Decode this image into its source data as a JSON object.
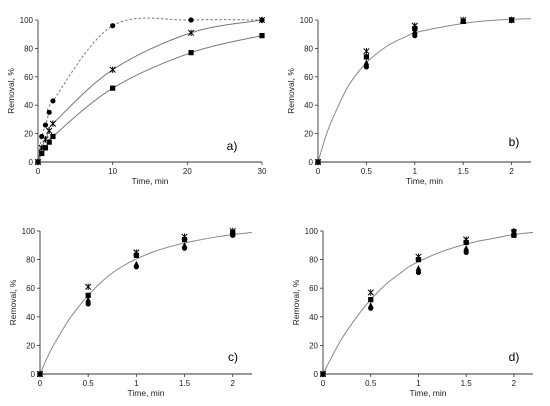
{
  "chart_data": [
    {
      "type": "scatter",
      "panel_label": "a)",
      "xlabel": "Time, min",
      "ylabel": "Removal, %",
      "xlim": [
        0,
        30
      ],
      "ylim": [
        0,
        100
      ],
      "xticks": [
        0,
        10,
        20,
        30
      ],
      "yticks": [
        0,
        20,
        40,
        60,
        80,
        100
      ],
      "series": [
        {
          "marker": "circle",
          "fit": "dashed",
          "points": [
            [
              0,
              0
            ],
            [
              0.5,
              18
            ],
            [
              1,
              26
            ],
            [
              1.5,
              35
            ],
            [
              2,
              43
            ],
            [
              10,
              96
            ],
            [
              20.5,
              100
            ],
            [
              30,
              100
            ]
          ]
        },
        {
          "marker": "cross",
          "fit": "solid",
          "points": [
            [
              0,
              0
            ],
            [
              0.5,
              10
            ],
            [
              1,
              16
            ],
            [
              1.5,
              22
            ],
            [
              2,
              27
            ],
            [
              10,
              65
            ],
            [
              20.5,
              91
            ],
            [
              30,
              100
            ]
          ]
        },
        {
          "marker": "square",
          "fit": "solid",
          "points": [
            [
              0,
              0
            ],
            [
              0.5,
              6
            ],
            [
              1,
              10
            ],
            [
              1.5,
              14
            ],
            [
              2,
              18
            ],
            [
              10,
              52
            ],
            [
              20.5,
              77
            ],
            [
              30,
              89
            ]
          ]
        }
      ]
    },
    {
      "type": "scatter",
      "panel_label": "b)",
      "xlabel": "Time, min",
      "ylabel": "Removal, %",
      "xlim": [
        0,
        2.2
      ],
      "ylim": [
        0,
        100
      ],
      "xticks": [
        0,
        0.5,
        1,
        1.5,
        2
      ],
      "yticks": [
        0,
        20,
        40,
        60,
        80,
        100
      ],
      "series": [
        {
          "marker": "cross",
          "points": [
            [
              0,
              0
            ],
            [
              0.5,
              78
            ],
            [
              1,
              96
            ],
            [
              1.5,
              100
            ],
            [
              2,
              100
            ]
          ]
        },
        {
          "marker": "square",
          "points": [
            [
              0,
              0
            ],
            [
              0.5,
              74
            ],
            [
              1,
              94
            ],
            [
              1.5,
              99
            ],
            [
              2,
              100
            ]
          ]
        },
        {
          "marker": "triangle",
          "points": [
            [
              0,
              0
            ],
            [
              0.5,
              70
            ],
            [
              1,
              92
            ],
            [
              1.5,
              99
            ],
            [
              2,
              100
            ]
          ]
        },
        {
          "marker": "circle",
          "points": [
            [
              0,
              0
            ],
            [
              0.5,
              67
            ],
            [
              1,
              89
            ],
            [
              1.5,
              99
            ],
            [
              2,
              100
            ]
          ]
        }
      ],
      "fit": [
        [
          0,
          0
        ],
        [
          0.1,
          22
        ],
        [
          0.2,
          38
        ],
        [
          0.3,
          52
        ],
        [
          0.4,
          62
        ],
        [
          0.5,
          70
        ],
        [
          0.6,
          76
        ],
        [
          0.7,
          81
        ],
        [
          0.8,
          85
        ],
        [
          0.9,
          88
        ],
        [
          1,
          91
        ],
        [
          1.2,
          94
        ],
        [
          1.4,
          96.5
        ],
        [
          1.6,
          98.5
        ],
        [
          1.8,
          99.7
        ],
        [
          2,
          100.5
        ],
        [
          2.2,
          101
        ]
      ]
    },
    {
      "type": "scatter",
      "panel_label": "c)",
      "xlabel": "Time, min",
      "ylabel": "Removal, %",
      "xlim": [
        0,
        2.2
      ],
      "ylim": [
        0,
        100
      ],
      "xticks": [
        0,
        0.5,
        1,
        1.5,
        2
      ],
      "yticks": [
        0,
        20,
        40,
        60,
        80,
        100
      ],
      "series": [
        {
          "marker": "cross",
          "points": [
            [
              0,
              0
            ],
            [
              0.5,
              61
            ],
            [
              1,
              85
            ],
            [
              1.5,
              96
            ],
            [
              2,
              100
            ]
          ]
        },
        {
          "marker": "square",
          "points": [
            [
              0,
              0
            ],
            [
              0.5,
              55
            ],
            [
              1,
              83
            ],
            [
              1.5,
              94
            ],
            [
              2,
              99
            ]
          ]
        },
        {
          "marker": "triangle",
          "points": [
            [
              0,
              0
            ],
            [
              0.5,
              52
            ],
            [
              1,
              77
            ],
            [
              1.5,
              90
            ],
            [
              2,
              98
            ]
          ]
        },
        {
          "marker": "circle",
          "points": [
            [
              0,
              0
            ],
            [
              0.5,
              49
            ],
            [
              1,
              75
            ],
            [
              1.5,
              88
            ],
            [
              2,
              97
            ]
          ]
        }
      ],
      "fit": [
        [
          0,
          0
        ],
        [
          0.1,
          15
        ],
        [
          0.2,
          27
        ],
        [
          0.3,
          38
        ],
        [
          0.4,
          47
        ],
        [
          0.5,
          55
        ],
        [
          0.6,
          62
        ],
        [
          0.7,
          68
        ],
        [
          0.8,
          73
        ],
        [
          0.9,
          77
        ],
        [
          1,
          80.5
        ],
        [
          1.2,
          86
        ],
        [
          1.4,
          90
        ],
        [
          1.6,
          93
        ],
        [
          1.8,
          95.5
        ],
        [
          2,
          97.5
        ],
        [
          2.2,
          99
        ]
      ]
    },
    {
      "type": "scatter",
      "panel_label": "d)",
      "xlabel": "Time, min",
      "ylabel": "Removal, %",
      "xlim": [
        0,
        2.2
      ],
      "ylim": [
        0,
        100
      ],
      "xticks": [
        0,
        0.5,
        1,
        1.5,
        2
      ],
      "yticks": [
        0,
        20,
        40,
        60,
        80,
        100
      ],
      "series": [
        {
          "marker": "cross",
          "points": [
            [
              0,
              0
            ],
            [
              0.5,
              57
            ],
            [
              1,
              82
            ],
            [
              1.5,
              94
            ],
            [
              2,
              99
            ]
          ]
        },
        {
          "marker": "square",
          "points": [
            [
              0,
              0
            ],
            [
              0.5,
              52
            ],
            [
              1,
              80
            ],
            [
              1.5,
              92
            ],
            [
              2,
              97
            ]
          ]
        },
        {
          "marker": "triangle",
          "points": [
            [
              0,
              0
            ],
            [
              0.5,
              48
            ],
            [
              1,
              74
            ],
            [
              1.5,
              88
            ],
            [
              2,
              98
            ]
          ]
        },
        {
          "marker": "circle",
          "points": [
            [
              0,
              0
            ],
            [
              0.5,
              46
            ],
            [
              1,
              71
            ],
            [
              1.5,
              85
            ],
            [
              2,
              100
            ]
          ]
        }
      ],
      "fit": [
        [
          0,
          0
        ],
        [
          0.1,
          13
        ],
        [
          0.2,
          25
        ],
        [
          0.3,
          35
        ],
        [
          0.4,
          44
        ],
        [
          0.5,
          52
        ],
        [
          0.6,
          59
        ],
        [
          0.7,
          65
        ],
        [
          0.8,
          70
        ],
        [
          0.9,
          75
        ],
        [
          1,
          78.5
        ],
        [
          1.2,
          84.5
        ],
        [
          1.4,
          89
        ],
        [
          1.6,
          92.5
        ],
        [
          1.8,
          95
        ],
        [
          2,
          97.5
        ],
        [
          2.2,
          99
        ]
      ]
    }
  ]
}
